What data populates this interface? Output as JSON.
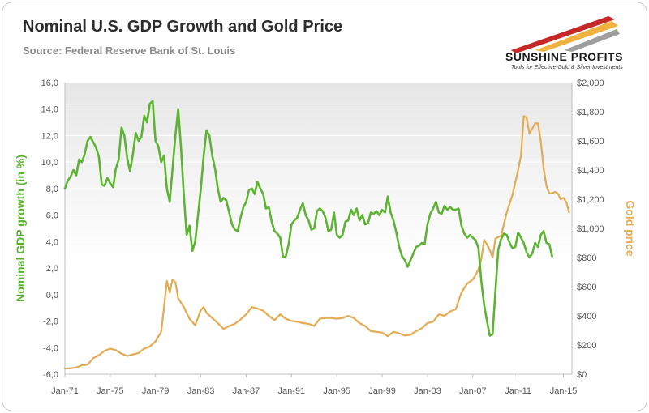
{
  "title": "Nominal U.S. GDP Growth and Gold Price",
  "source": "Source: Federal Reserve Bank of St. Louis",
  "brand": {
    "name": "SUNSHINE PROFITS",
    "tagline": "Tools for Effective Gold & Silver Investments",
    "colors": [
      "#c62828",
      "#f0b23e",
      "#9e9e9e"
    ]
  },
  "chart_data": {
    "type": "line",
    "title": "Nominal U.S. GDP Growth and Gold Price",
    "x_ticks": [
      "Jan-71",
      "Jan-75",
      "Jan-79",
      "Jan-83",
      "Jan-87",
      "Jan-91",
      "Jan-95",
      "Jan-99",
      "Jan-03",
      "Jan-07",
      "Jan-11",
      "Jan-15"
    ],
    "x_range": [
      1971.0,
      2015.75
    ],
    "y_left": {
      "label": "Nominal GDP growth (in %)",
      "range": [
        -6,
        16
      ],
      "ticks": [
        "-6,0",
        "-4,0",
        "-2,0",
        "0,0",
        "2,0",
        "4,0",
        "6,0",
        "8,0",
        "10,0",
        "12,0",
        "14,0",
        "16,0"
      ]
    },
    "y_right": {
      "label": "Gold price",
      "range": [
        0,
        2000
      ],
      "ticks": [
        "$0",
        "$200",
        "$400",
        "$600",
        "$800",
        "$1,000",
        "$1,200",
        "$1,400",
        "$1,600",
        "$1,800",
        "$2,000"
      ]
    },
    "series": [
      {
        "name": "Nominal GDP growth (in %)",
        "axis": "left",
        "color": "#5db432",
        "points": [
          [
            1971.0,
            8.0
          ],
          [
            1971.25,
            8.6
          ],
          [
            1971.5,
            8.9
          ],
          [
            1971.75,
            9.4
          ],
          [
            1972.0,
            9.0
          ],
          [
            1972.25,
            10.2
          ],
          [
            1972.5,
            10.0
          ],
          [
            1972.75,
            10.6
          ],
          [
            1973.0,
            11.6
          ],
          [
            1973.25,
            11.9
          ],
          [
            1973.5,
            11.5
          ],
          [
            1973.75,
            11.1
          ],
          [
            1974.0,
            10.4
          ],
          [
            1974.25,
            8.3
          ],
          [
            1974.5,
            8.2
          ],
          [
            1974.75,
            8.8
          ],
          [
            1975.0,
            8.4
          ],
          [
            1975.25,
            8.1
          ],
          [
            1975.5,
            9.5
          ],
          [
            1975.75,
            10.2
          ],
          [
            1976.0,
            12.6
          ],
          [
            1976.25,
            12.0
          ],
          [
            1976.5,
            10.3
          ],
          [
            1976.75,
            9.3
          ],
          [
            1977.0,
            10.6
          ],
          [
            1977.25,
            12.2
          ],
          [
            1977.5,
            11.6
          ],
          [
            1977.75,
            11.9
          ],
          [
            1978.0,
            13.5
          ],
          [
            1978.25,
            13.0
          ],
          [
            1978.5,
            14.4
          ],
          [
            1978.75,
            14.6
          ],
          [
            1979.0,
            11.6
          ],
          [
            1979.25,
            11.2
          ],
          [
            1979.5,
            10.0
          ],
          [
            1979.75,
            10.5
          ],
          [
            1980.0,
            8.0
          ],
          [
            1980.25,
            7.0
          ],
          [
            1980.5,
            9.5
          ],
          [
            1980.75,
            12.0
          ],
          [
            1981.0,
            14.0
          ],
          [
            1981.25,
            11.0
          ],
          [
            1981.5,
            7.5
          ],
          [
            1981.75,
            4.5
          ],
          [
            1982.0,
            5.2
          ],
          [
            1982.25,
            3.3
          ],
          [
            1982.5,
            4.0
          ],
          [
            1982.75,
            6.0
          ],
          [
            1983.0,
            8.0
          ],
          [
            1983.25,
            10.5
          ],
          [
            1983.5,
            12.4
          ],
          [
            1983.75,
            12.0
          ],
          [
            1984.0,
            10.5
          ],
          [
            1984.25,
            9.5
          ],
          [
            1984.5,
            8.0
          ],
          [
            1984.75,
            7.0
          ],
          [
            1985.0,
            7.3
          ],
          [
            1985.25,
            7.1
          ],
          [
            1985.5,
            6.2
          ],
          [
            1985.75,
            5.3
          ],
          [
            1986.0,
            4.9
          ],
          [
            1986.25,
            4.8
          ],
          [
            1986.5,
            5.8
          ],
          [
            1986.75,
            6.6
          ],
          [
            1987.0,
            7.0
          ],
          [
            1987.25,
            7.9
          ],
          [
            1987.5,
            8.0
          ],
          [
            1987.75,
            7.6
          ],
          [
            1988.0,
            8.5
          ],
          [
            1988.25,
            8.0
          ],
          [
            1988.5,
            7.6
          ],
          [
            1988.75,
            6.5
          ],
          [
            1989.0,
            6.6
          ],
          [
            1989.25,
            5.5
          ],
          [
            1989.5,
            4.8
          ],
          [
            1989.75,
            4.6
          ],
          [
            1990.0,
            4.3
          ],
          [
            1990.25,
            2.8
          ],
          [
            1990.5,
            2.9
          ],
          [
            1990.75,
            3.8
          ],
          [
            1991.0,
            5.3
          ],
          [
            1991.25,
            5.6
          ],
          [
            1991.5,
            5.8
          ],
          [
            1991.75,
            6.4
          ],
          [
            1992.0,
            6.9
          ],
          [
            1992.25,
            6.0
          ],
          [
            1992.5,
            5.6
          ],
          [
            1992.75,
            4.9
          ],
          [
            1993.0,
            5.0
          ],
          [
            1993.25,
            6.3
          ],
          [
            1993.5,
            6.5
          ],
          [
            1993.75,
            6.3
          ],
          [
            1994.0,
            5.8
          ],
          [
            1994.25,
            4.8
          ],
          [
            1994.5,
            4.9
          ],
          [
            1994.75,
            6.2
          ],
          [
            1995.0,
            4.5
          ],
          [
            1995.25,
            4.3
          ],
          [
            1995.5,
            4.5
          ],
          [
            1995.75,
            5.5
          ],
          [
            1996.0,
            5.6
          ],
          [
            1996.25,
            6.4
          ],
          [
            1996.5,
            6.0
          ],
          [
            1996.75,
            6.5
          ],
          [
            1997.0,
            5.6
          ],
          [
            1997.25,
            6.0
          ],
          [
            1997.5,
            5.3
          ],
          [
            1997.75,
            5.4
          ],
          [
            1998.0,
            6.2
          ],
          [
            1998.25,
            6.1
          ],
          [
            1998.5,
            6.3
          ],
          [
            1998.75,
            6.0
          ],
          [
            1999.0,
            6.4
          ],
          [
            1999.25,
            6.2
          ],
          [
            1999.5,
            7.4
          ],
          [
            1999.75,
            6.2
          ],
          [
            2000.0,
            5.6
          ],
          [
            2000.25,
            4.7
          ],
          [
            2000.5,
            3.6
          ],
          [
            2000.75,
            2.9
          ],
          [
            2001.0,
            2.6
          ],
          [
            2001.25,
            2.1
          ],
          [
            2001.5,
            2.6
          ],
          [
            2001.75,
            3.1
          ],
          [
            2002.0,
            3.6
          ],
          [
            2002.25,
            3.7
          ],
          [
            2002.5,
            3.9
          ],
          [
            2002.75,
            3.8
          ],
          [
            2003.0,
            5.3
          ],
          [
            2003.25,
            6.1
          ],
          [
            2003.5,
            6.5
          ],
          [
            2003.75,
            7.0
          ],
          [
            2004.0,
            6.2
          ],
          [
            2004.25,
            6.1
          ],
          [
            2004.5,
            6.7
          ],
          [
            2004.75,
            6.4
          ],
          [
            2005.0,
            6.6
          ],
          [
            2005.25,
            6.4
          ],
          [
            2005.5,
            6.4
          ],
          [
            2005.75,
            6.5
          ],
          [
            2006.0,
            5.2
          ],
          [
            2006.25,
            4.6
          ],
          [
            2006.5,
            4.3
          ],
          [
            2006.75,
            4.5
          ],
          [
            2007.0,
            4.3
          ],
          [
            2007.25,
            4.1
          ],
          [
            2007.5,
            3.5
          ],
          [
            2007.75,
            1.0
          ],
          [
            2008.0,
            -0.8
          ],
          [
            2008.25,
            -2.0
          ],
          [
            2008.5,
            -3.1
          ],
          [
            2008.75,
            -3.0
          ],
          [
            2009.0,
            0.3
          ],
          [
            2009.25,
            3.4
          ],
          [
            2009.5,
            4.2
          ],
          [
            2009.75,
            4.6
          ],
          [
            2010.0,
            4.5
          ],
          [
            2010.25,
            3.9
          ],
          [
            2010.5,
            3.5
          ],
          [
            2010.75,
            3.6
          ],
          [
            2011.0,
            4.7
          ],
          [
            2011.25,
            4.3
          ],
          [
            2011.5,
            3.9
          ],
          [
            2011.75,
            3.2
          ],
          [
            2012.0,
            2.8
          ],
          [
            2012.25,
            3.1
          ],
          [
            2012.5,
            3.9
          ],
          [
            2012.75,
            3.6
          ],
          [
            2013.0,
            4.5
          ],
          [
            2013.25,
            4.8
          ],
          [
            2013.5,
            3.9
          ],
          [
            2013.75,
            3.8
          ],
          [
            2014.0,
            2.9
          ]
        ]
      },
      {
        "name": "Gold price",
        "axis": "right",
        "color": "#e3ab52",
        "points": [
          [
            1971.0,
            38
          ],
          [
            1971.5,
            40
          ],
          [
            1972.0,
            46
          ],
          [
            1972.5,
            60
          ],
          [
            1973.0,
            65
          ],
          [
            1973.5,
            110
          ],
          [
            1974.0,
            130
          ],
          [
            1974.5,
            160
          ],
          [
            1975.0,
            175
          ],
          [
            1975.5,
            165
          ],
          [
            1976.0,
            140
          ],
          [
            1976.5,
            125
          ],
          [
            1977.0,
            135
          ],
          [
            1977.5,
            145
          ],
          [
            1978.0,
            175
          ],
          [
            1978.5,
            190
          ],
          [
            1979.0,
            225
          ],
          [
            1979.5,
            290
          ],
          [
            1979.75,
            460
          ],
          [
            1980.0,
            640
          ],
          [
            1980.25,
            560
          ],
          [
            1980.5,
            650
          ],
          [
            1980.75,
            630
          ],
          [
            1981.0,
            520
          ],
          [
            1981.5,
            460
          ],
          [
            1982.0,
            380
          ],
          [
            1982.5,
            335
          ],
          [
            1983.0,
            440
          ],
          [
            1983.25,
            460
          ],
          [
            1983.5,
            420
          ],
          [
            1984.0,
            385
          ],
          [
            1984.5,
            350
          ],
          [
            1985.0,
            310
          ],
          [
            1985.5,
            330
          ],
          [
            1986.0,
            345
          ],
          [
            1986.5,
            375
          ],
          [
            1987.0,
            410
          ],
          [
            1987.5,
            460
          ],
          [
            1988.0,
            450
          ],
          [
            1988.5,
            435
          ],
          [
            1989.0,
            400
          ],
          [
            1989.5,
            370
          ],
          [
            1990.0,
            410
          ],
          [
            1990.5,
            380
          ],
          [
            1991.0,
            365
          ],
          [
            1991.5,
            360
          ],
          [
            1992.0,
            350
          ],
          [
            1992.5,
            345
          ],
          [
            1993.0,
            330
          ],
          [
            1993.5,
            380
          ],
          [
            1994.0,
            385
          ],
          [
            1994.5,
            385
          ],
          [
            1995.0,
            380
          ],
          [
            1995.5,
            385
          ],
          [
            1996.0,
            400
          ],
          [
            1996.5,
            385
          ],
          [
            1997.0,
            350
          ],
          [
            1997.5,
            330
          ],
          [
            1998.0,
            295
          ],
          [
            1998.5,
            290
          ],
          [
            1999.0,
            285
          ],
          [
            1999.5,
            260
          ],
          [
            2000.0,
            290
          ],
          [
            2000.5,
            280
          ],
          [
            2001.0,
            265
          ],
          [
            2001.5,
            270
          ],
          [
            2002.0,
            295
          ],
          [
            2002.5,
            315
          ],
          [
            2003.0,
            350
          ],
          [
            2003.5,
            360
          ],
          [
            2004.0,
            410
          ],
          [
            2004.5,
            400
          ],
          [
            2005.0,
            430
          ],
          [
            2005.5,
            445
          ],
          [
            2006.0,
            560
          ],
          [
            2006.5,
            620
          ],
          [
            2007.0,
            650
          ],
          [
            2007.25,
            680
          ],
          [
            2007.5,
            720
          ],
          [
            2007.75,
            790
          ],
          [
            2008.0,
            920
          ],
          [
            2008.25,
            890
          ],
          [
            2008.5,
            850
          ],
          [
            2008.75,
            800
          ],
          [
            2009.0,
            930
          ],
          [
            2009.5,
            950
          ],
          [
            2010.0,
            1110
          ],
          [
            2010.5,
            1230
          ],
          [
            2011.0,
            1400
          ],
          [
            2011.25,
            1500
          ],
          [
            2011.5,
            1770
          ],
          [
            2011.75,
            1760
          ],
          [
            2012.0,
            1650
          ],
          [
            2012.5,
            1720
          ],
          [
            2012.75,
            1720
          ],
          [
            2013.0,
            1600
          ],
          [
            2013.25,
            1410
          ],
          [
            2013.5,
            1290
          ],
          [
            2013.75,
            1240
          ],
          [
            2014.0,
            1240
          ],
          [
            2014.25,
            1250
          ],
          [
            2014.5,
            1240
          ],
          [
            2014.75,
            1200
          ],
          [
            2015.0,
            1210
          ],
          [
            2015.25,
            1180
          ],
          [
            2015.5,
            1110
          ]
        ]
      }
    ],
    "grid": true,
    "legend": "none"
  }
}
